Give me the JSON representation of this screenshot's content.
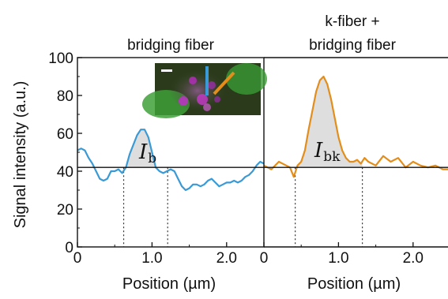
{
  "chart_data": [
    {
      "type": "line",
      "title": "bridging fiber",
      "xlabel": "Position (µm)",
      "ylabel": "Signal intensity (a.u.)",
      "xlim": [
        0,
        2.5
      ],
      "ylim": [
        0,
        100
      ],
      "x_ticks": [
        "0",
        "1.0",
        "2.0"
      ],
      "y_ticks": [
        "0",
        "20",
        "40",
        "60",
        "80",
        "100"
      ],
      "color": "#3a9ad6",
      "baseline": 42,
      "integration_bounds": [
        0.62,
        1.21
      ],
      "annotation": "I",
      "annotation_sub": "b",
      "x": [
        0.0,
        0.05,
        0.1,
        0.15,
        0.2,
        0.25,
        0.3,
        0.35,
        0.4,
        0.45,
        0.5,
        0.55,
        0.6,
        0.65,
        0.7,
        0.75,
        0.8,
        0.85,
        0.9,
        0.95,
        1.0,
        1.05,
        1.1,
        1.15,
        1.2,
        1.25,
        1.3,
        1.35,
        1.4,
        1.45,
        1.5,
        1.55,
        1.6,
        1.65,
        1.7,
        1.75,
        1.8,
        1.85,
        1.9,
        1.95,
        2.0,
        2.05,
        2.1,
        2.15,
        2.2,
        2.25,
        2.3,
        2.35,
        2.4,
        2.45,
        2.5
      ],
      "values": [
        51,
        52,
        51,
        47,
        44,
        40,
        36,
        35,
        36,
        40,
        40,
        41,
        39,
        42,
        49,
        54,
        59,
        62,
        62,
        58,
        50,
        42,
        40,
        39,
        40,
        41,
        40,
        36,
        32,
        30,
        31,
        33,
        33,
        32,
        33,
        35,
        36,
        34,
        32,
        33,
        34,
        34,
        35,
        34,
        35,
        37,
        38,
        40,
        43,
        45,
        44
      ]
    },
    {
      "type": "line",
      "title": "k-fiber +\nbridging fiber",
      "title_lines": [
        "k-fiber +",
        "bridging fiber"
      ],
      "xlabel": "Position (µm)",
      "xlim": [
        0,
        2.5
      ],
      "ylim": [
        0,
        100
      ],
      "x_ticks": [
        "0",
        "1.0",
        "2.0"
      ],
      "color": "#e38d1b",
      "baseline": 42,
      "integration_bounds": [
        0.42,
        1.32
      ],
      "annotation": "I",
      "annotation_sub": "bk",
      "x": [
        0.0,
        0.1,
        0.2,
        0.3,
        0.35,
        0.4,
        0.45,
        0.5,
        0.55,
        0.6,
        0.65,
        0.7,
        0.75,
        0.8,
        0.85,
        0.9,
        0.95,
        1.0,
        1.05,
        1.1,
        1.15,
        1.2,
        1.25,
        1.3,
        1.35,
        1.4,
        1.5,
        1.6,
        1.7,
        1.8,
        1.9,
        2.0,
        2.1,
        2.2,
        2.3,
        2.4,
        2.5
      ],
      "values": [
        43,
        41,
        45,
        43,
        42,
        37,
        43,
        45,
        51,
        62,
        72,
        82,
        88,
        90,
        86,
        78,
        68,
        58,
        51,
        47,
        45,
        45,
        46,
        44,
        47,
        45,
        43,
        48,
        45,
        47,
        42,
        45,
        43,
        42,
        43,
        41,
        41
      ]
    }
  ],
  "inset": {
    "scalebar_color": "#ffffff",
    "line1_color": "#3a9ad6",
    "line2_color": "#e38d1b"
  }
}
